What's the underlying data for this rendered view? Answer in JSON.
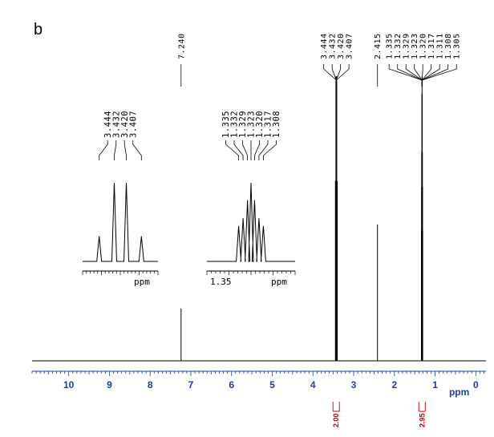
{
  "panel_label": "b",
  "chart_data": {
    "type": "line",
    "title": "",
    "xlabel": "ppm",
    "x_reversed": true,
    "xlim": [
      10.9,
      -0.25
    ],
    "ylim": [
      0,
      1.0
    ],
    "grid": false,
    "axis_color": "#1a3fa3",
    "x_ticks": [
      "10",
      "9",
      "8",
      "7",
      "6",
      "5",
      "4",
      "3",
      "2",
      "1",
      "0"
    ],
    "peaks": [
      {
        "ppm": 7.24,
        "height": 0.18,
        "name": "solvent"
      },
      {
        "ppm": 3.444,
        "height": 0.62
      },
      {
        "ppm": 3.432,
        "height": 0.98
      },
      {
        "ppm": 3.42,
        "height": 0.98
      },
      {
        "ppm": 3.407,
        "height": 0.62
      },
      {
        "ppm": 2.415,
        "height": 0.47
      },
      {
        "ppm": 1.335,
        "height": 0.45
      },
      {
        "ppm": 1.332,
        "height": 0.6
      },
      {
        "ppm": 1.329,
        "height": 0.72
      },
      {
        "ppm": 1.323,
        "height": 0.92
      },
      {
        "ppm": 1.32,
        "height": 0.98
      },
      {
        "ppm": 1.317,
        "height": 0.92
      },
      {
        "ppm": 1.311,
        "height": 0.72
      },
      {
        "ppm": 1.308,
        "height": 0.6
      },
      {
        "ppm": 1.305,
        "height": 0.45
      }
    ],
    "peak_label_groups": [
      {
        "labels": [
          "7.240"
        ],
        "anchor_ppm": 7.24
      },
      {
        "labels": [
          "3.444",
          "3.432",
          "3.420",
          "3.407"
        ],
        "anchor_ppm": 3.426
      },
      {
        "labels": [
          "2.415"
        ],
        "anchor_ppm": 2.415
      },
      {
        "labels": [
          "1.335",
          "1.332",
          "1.329",
          "1.323",
          "1.320",
          "1.317",
          "1.311",
          "1.308",
          "1.305"
        ],
        "anchor_ppm": 1.32
      }
    ],
    "integrals": [
      {
        "label": "2.00",
        "ppm": 3.43
      },
      {
        "label": "2.95",
        "ppm": 1.32
      }
    ],
    "insets": [
      {
        "name": "inset-3.4",
        "labels": [
          "3.444",
          "3.432",
          "3.420",
          "3.407"
        ],
        "axis_label": "ppm",
        "tick_text": "",
        "peaks": [
          {
            "pos": 0.22,
            "height": 0.32
          },
          {
            "pos": 0.42,
            "height": 1.0
          },
          {
            "pos": 0.58,
            "height": 1.0
          },
          {
            "pos": 0.78,
            "height": 0.32
          }
        ]
      },
      {
        "name": "inset-1.3",
        "labels": [
          "1.335",
          "1.332",
          "1.329",
          "1.323",
          "1.320",
          "1.317",
          "1.308"
        ],
        "axis_label": "ppm",
        "tick_text": "1.35",
        "peaks": [
          {
            "pos": 0.36,
            "height": 0.45
          },
          {
            "pos": 0.41,
            "height": 0.55
          },
          {
            "pos": 0.46,
            "height": 0.78
          },
          {
            "pos": 0.5,
            "height": 1.0
          },
          {
            "pos": 0.54,
            "height": 0.78
          },
          {
            "pos": 0.59,
            "height": 0.55
          },
          {
            "pos": 0.64,
            "height": 0.45
          }
        ]
      }
    ]
  }
}
